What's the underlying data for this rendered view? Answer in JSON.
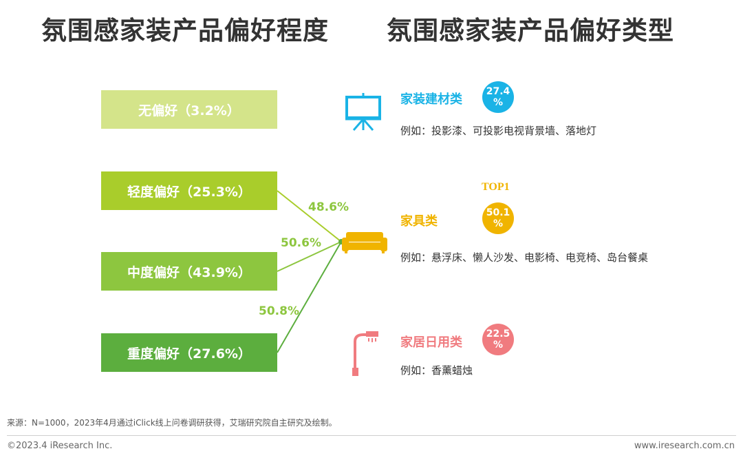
{
  "titles": {
    "left": "氛围感家装产品偏好程度",
    "right": "氛围感家装产品偏好类型"
  },
  "preference_levels": [
    {
      "label": "无偏好（3.2%）",
      "color": "#d4e48a"
    },
    {
      "label": "轻度偏好（25.3%）",
      "color": "#a9cd2b"
    },
    {
      "label": "中度偏好（43.9%）",
      "color": "#8dc63f"
    },
    {
      "label": "重度偏好（27.6%）",
      "color": "#5cae3e"
    }
  ],
  "connector_percents": [
    "48.6%",
    "50.6%",
    "50.8%"
  ],
  "categories": [
    {
      "name": "家装建材类",
      "color": "#1ab3e6",
      "value_line1": "27.4",
      "value_line2": "%",
      "example": "例如：投影漆、可投影电视背景墙、落地灯",
      "icon": "projector-screen-icon"
    },
    {
      "name": "家具类",
      "color": "#f0b400",
      "value_line1": "50.1",
      "value_line2": "%",
      "example": "例如：悬浮床、懒人沙发、电影椅、电竞椅、岛台餐桌",
      "icon": "sofa-icon",
      "badge": "TOP1"
    },
    {
      "name": "家居日用类",
      "color": "#f07b7f",
      "value_line1": "22.5",
      "value_line2": "%",
      "example": "例如：香薰蜡烛",
      "icon": "floor-lamp-icon"
    }
  ],
  "footer": {
    "source": "来源：N=1000，2023年4月通过iClick线上问卷调研获得，艾瑞研究院自主研究及绘制。",
    "copyright": "©2023.4 iResearch Inc.",
    "website": "www.iresearch.com.cn"
  }
}
